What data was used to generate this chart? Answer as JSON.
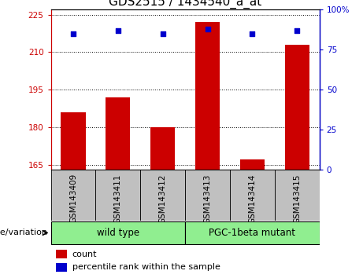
{
  "title": "GDS2515 / 1434540_a_at",
  "samples": [
    "GSM143409",
    "GSM143411",
    "GSM143412",
    "GSM143413",
    "GSM143414",
    "GSM143415"
  ],
  "counts": [
    186,
    192,
    180,
    222,
    167,
    213
  ],
  "percentile_ranks": [
    85,
    87,
    85,
    88,
    85,
    87
  ],
  "ylim_left": [
    163,
    227
  ],
  "ylim_right": [
    0,
    100
  ],
  "yticks_left": [
    165,
    180,
    195,
    210,
    225
  ],
  "yticks_right": [
    0,
    25,
    50,
    75,
    100
  ],
  "bar_color": "#cc0000",
  "dot_color": "#0000cc",
  "bar_width": 0.55,
  "group_label": "genotype/variation",
  "legend_count_label": "count",
  "legend_percentile_label": "percentile rank within the sample",
  "bg_group": "#90ee90",
  "bg_xtick": "#c0c0c0",
  "title_fontsize": 11,
  "tick_label_fontsize": 7.5,
  "group_fontsize": 8.5,
  "legend_fontsize": 8,
  "genotype_fontsize": 8
}
